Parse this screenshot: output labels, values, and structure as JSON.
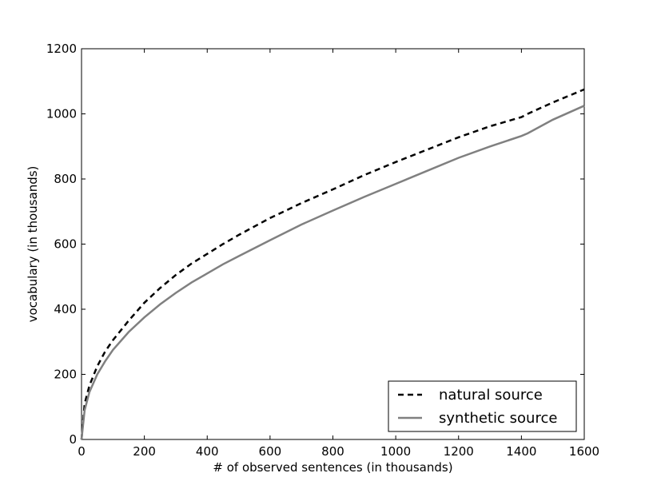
{
  "chart_data": {
    "type": "line",
    "title": "",
    "xlabel": "# of observed sentences (in thousands)",
    "ylabel": "vocabulary (in thousands)",
    "xlim": [
      0,
      1600
    ],
    "ylim": [
      0,
      1200
    ],
    "xticks": [
      0,
      200,
      400,
      600,
      800,
      1000,
      1200,
      1400,
      1600
    ],
    "yticks": [
      0,
      200,
      400,
      600,
      800,
      1000,
      1200
    ],
    "grid": false,
    "legend": "bottom-right",
    "series": [
      {
        "name": "natural source",
        "color": "#000000",
        "style": "dashed",
        "x": [
          0,
          10,
          25,
          50,
          75,
          100,
          150,
          200,
          250,
          300,
          350,
          400,
          450,
          500,
          600,
          700,
          800,
          900,
          1000,
          1100,
          1200,
          1300,
          1400,
          1420,
          1500,
          1600
        ],
        "y": [
          0,
          110,
          165,
          225,
          270,
          305,
          365,
          420,
          465,
          505,
          540,
          570,
          600,
          628,
          680,
          726,
          768,
          812,
          852,
          890,
          928,
          962,
          990,
          1000,
          1035,
          1075
        ]
      },
      {
        "name": "synthetic source",
        "color": "#808080",
        "style": "solid",
        "x": [
          0,
          10,
          25,
          50,
          75,
          100,
          150,
          200,
          250,
          300,
          350,
          400,
          450,
          500,
          600,
          700,
          800,
          900,
          1000,
          1100,
          1200,
          1300,
          1400,
          1420,
          1500,
          1600
        ],
        "y": [
          0,
          90,
          145,
          200,
          240,
          275,
          330,
          375,
          415,
          450,
          482,
          510,
          538,
          563,
          612,
          660,
          703,
          745,
          785,
          825,
          865,
          900,
          932,
          940,
          982,
          1025
        ]
      }
    ]
  }
}
